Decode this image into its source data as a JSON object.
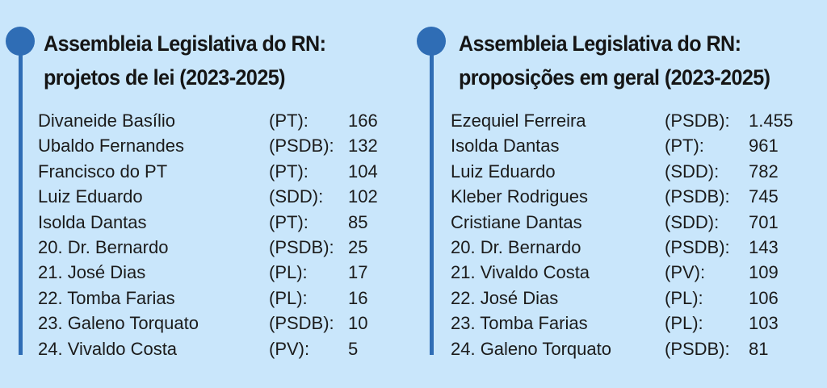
{
  "left": {
    "title_line1": "Assembleia Legislativa do RN:",
    "title_line2": "projetos de lei (2023-2025)",
    "rows": [
      {
        "name": "Divaneide Basílio",
        "party": "(PT):",
        "value": "166"
      },
      {
        "name": "Ubaldo Fernandes",
        "party": "(PSDB):",
        "value": "132"
      },
      {
        "name": "Francisco do PT",
        "party": "(PT):",
        "value": "104"
      },
      {
        "name": "Luiz Eduardo",
        "party": "(SDD):",
        "value": "102"
      },
      {
        "name": "Isolda Dantas",
        "party": "(PT):",
        "value": "85"
      },
      {
        "name": "20. Dr. Bernardo",
        "party": "(PSDB):",
        "value": "25"
      },
      {
        "name": "21. José Dias",
        "party": "(PL):",
        "value": "17"
      },
      {
        "name": "22. Tomba Farias",
        "party": "(PL):",
        "value": "16"
      },
      {
        "name": "23. Galeno Torquato",
        "party": "(PSDB):",
        "value": "10"
      },
      {
        "name": "24. Vivaldo Costa",
        "party": "(PV):",
        "value": "5"
      }
    ]
  },
  "right": {
    "title_line1": "Assembleia Legislativa do RN:",
    "title_line2": "proposições em geral (2023-2025)",
    "rows": [
      {
        "name": "Ezequiel Ferreira",
        "party": "(PSDB):",
        "value": "1.455"
      },
      {
        "name": "Isolda Dantas",
        "party": "(PT):",
        "value": "961"
      },
      {
        "name": "Luiz Eduardo",
        "party": "(SDD):",
        "value": "782"
      },
      {
        "name": "Kleber Rodrigues",
        "party": "(PSDB):",
        "value": "745"
      },
      {
        "name": "Cristiane Dantas",
        "party": "(SDD):",
        "value": "701"
      },
      {
        "name": "20. Dr. Bernardo",
        "party": "(PSDB):",
        "value": "143"
      },
      {
        "name": "21. Vivaldo Costa",
        "party": "(PV):",
        "value": "109"
      },
      {
        "name": "22. José Dias",
        "party": "(PL):",
        "value": "106"
      },
      {
        "name": "23. Tomba Farias",
        "party": "(PL):",
        "value": "103"
      },
      {
        "name": "24. Galeno Torquato",
        "party": "(PSDB):",
        "value": "81"
      }
    ]
  },
  "colors": {
    "background": "#c9e6fb",
    "accent": "#2f6db5",
    "text": "#1b1b1b"
  }
}
